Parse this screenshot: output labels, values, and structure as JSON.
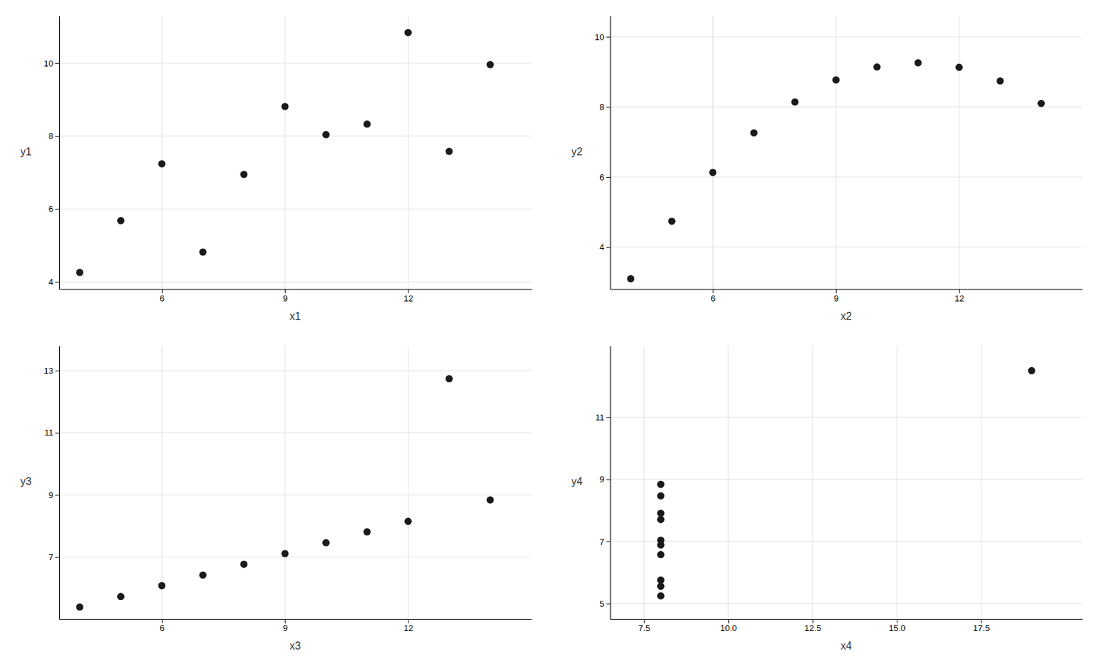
{
  "chart_data": [
    {
      "type": "scatter",
      "xlabel": "x1",
      "ylabel": "y1",
      "x": [
        10,
        8,
        13,
        9,
        11,
        14,
        6,
        4,
        12,
        7,
        5
      ],
      "values": [
        8.04,
        6.95,
        7.58,
        8.81,
        8.33,
        9.96,
        7.24,
        4.26,
        10.84,
        4.82,
        5.68
      ],
      "color": "#1a1a1a",
      "xlim": [
        3.5,
        15.0
      ],
      "ylim": [
        3.8,
        11.3
      ],
      "xticks": [
        6,
        9,
        12
      ],
      "yticks": [
        4,
        6,
        8,
        10
      ],
      "grid": true
    },
    {
      "type": "scatter",
      "xlabel": "x2",
      "ylabel": "y2",
      "x": [
        10,
        8,
        13,
        9,
        11,
        14,
        6,
        4,
        12,
        7,
        5
      ],
      "values": [
        9.14,
        8.14,
        8.74,
        8.77,
        9.26,
        8.1,
        6.13,
        3.1,
        9.13,
        7.26,
        4.74
      ],
      "color": "#1a1a1a",
      "xlim": [
        3.5,
        15.0
      ],
      "ylim": [
        2.8,
        10.6
      ],
      "xticks": [
        6,
        9,
        12
      ],
      "yticks": [
        4,
        6,
        8,
        10
      ],
      "grid": true
    },
    {
      "type": "scatter",
      "xlabel": "x3",
      "ylabel": "y3",
      "x": [
        10,
        8,
        13,
        9,
        11,
        14,
        6,
        4,
        12,
        7,
        5
      ],
      "values": [
        7.46,
        6.77,
        12.74,
        7.11,
        7.81,
        8.84,
        6.08,
        5.39,
        8.15,
        6.42,
        5.73
      ],
      "color": "#1a1a1a",
      "xlim": [
        3.5,
        15.0
      ],
      "ylim": [
        5.0,
        13.8
      ],
      "xticks": [
        6,
        9,
        12
      ],
      "yticks": [
        7,
        9,
        11,
        13
      ],
      "grid": true
    },
    {
      "type": "scatter",
      "xlabel": "x4",
      "ylabel": "y4",
      "x": [
        8,
        8,
        8,
        8,
        8,
        8,
        8,
        19,
        8,
        8,
        8
      ],
      "values": [
        6.58,
        5.76,
        7.71,
        8.84,
        8.47,
        7.04,
        5.25,
        12.5,
        5.56,
        7.91,
        6.89
      ],
      "color": "#1a1a1a",
      "xlim": [
        6.5,
        20.5
      ],
      "ylim": [
        4.5,
        13.3
      ],
      "xticks": [
        7.5,
        {
          "value": 10,
          "label": "10.0"
        },
        12.5,
        {
          "value": 15,
          "label": "15.0"
        },
        17.5
      ],
      "yticks": [
        5,
        7,
        9,
        11
      ],
      "grid": true
    }
  ]
}
